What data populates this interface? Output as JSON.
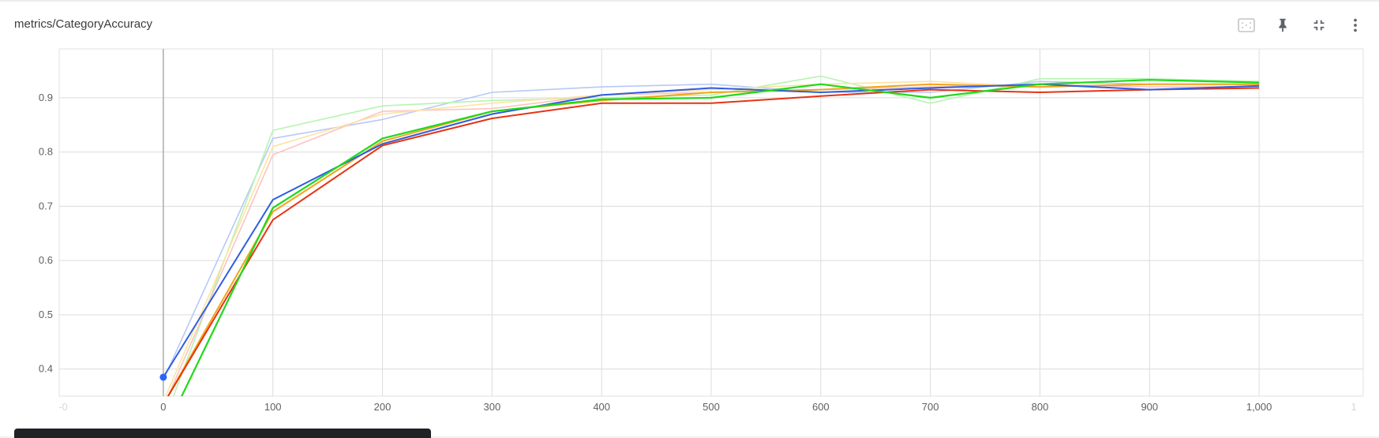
{
  "card": {
    "title": "metrics/CategoryAccuracy"
  },
  "toolbar": {
    "buttons": [
      {
        "name": "fit-domain-button",
        "icon": "fit-to-data-icon"
      },
      {
        "name": "pin-button",
        "icon": "pin-icon"
      },
      {
        "name": "collapse-button",
        "icon": "fullscreen-exit-icon"
      },
      {
        "name": "more-options-button",
        "icon": "more-vert-icon"
      }
    ]
  },
  "chart_data": {
    "type": "line",
    "title": "metrics/CategoryAccuracy",
    "xlabel": "",
    "ylabel": "",
    "xlim": [
      -95,
      1095
    ],
    "ylim": [
      0.35,
      0.99
    ],
    "x_ticks": [
      0,
      100,
      200,
      300,
      400,
      500,
      600,
      700,
      800,
      900,
      1000
    ],
    "x_tick_labels": [
      "0",
      "100",
      "200",
      "300",
      "400",
      "500",
      "600",
      "700",
      "800",
      "900",
      "1,000"
    ],
    "x_tick_labels_faded": [
      "-0",
      "1"
    ],
    "y_ticks": [
      0.4,
      0.5,
      0.6,
      0.7,
      0.8,
      0.9
    ],
    "y_tick_labels": [
      "0.4",
      "0.5",
      "0.6",
      "0.7",
      "0.8",
      "0.9"
    ],
    "grid": true,
    "highlight_point": {
      "x": 0,
      "y": 0.385,
      "color": "#2962ff"
    },
    "series": [
      {
        "color": "#b7c9f8",
        "width": 1.6,
        "points": [
          [
            0,
            0.38
          ],
          [
            100,
            0.825
          ],
          [
            200,
            0.86
          ],
          [
            300,
            0.91
          ],
          [
            400,
            0.92
          ],
          [
            500,
            0.925
          ],
          [
            600,
            0.91
          ],
          [
            700,
            0.91
          ],
          [
            800,
            0.93
          ],
          [
            900,
            0.925
          ],
          [
            1000,
            0.925
          ]
        ]
      },
      {
        "color": "#b6f4b2",
        "width": 1.6,
        "points": [
          [
            0,
            0.3
          ],
          [
            100,
            0.84
          ],
          [
            200,
            0.885
          ],
          [
            300,
            0.895
          ],
          [
            400,
            0.9
          ],
          [
            500,
            0.905
          ],
          [
            600,
            0.94
          ],
          [
            700,
            0.89
          ],
          [
            800,
            0.935
          ],
          [
            900,
            0.935
          ],
          [
            1000,
            0.93
          ]
        ]
      },
      {
        "color": "#fbc4c0",
        "width": 1.6,
        "points": [
          [
            0,
            0.33
          ],
          [
            100,
            0.795
          ],
          [
            200,
            0.875
          ],
          [
            300,
            0.88
          ],
          [
            400,
            0.905
          ],
          [
            500,
            0.91
          ],
          [
            600,
            0.915
          ],
          [
            700,
            0.92
          ],
          [
            800,
            0.925
          ],
          [
            900,
            0.92
          ],
          [
            1000,
            0.92
          ]
        ]
      },
      {
        "color": "#fde3a3",
        "width": 1.6,
        "points": [
          [
            0,
            0.34
          ],
          [
            100,
            0.81
          ],
          [
            200,
            0.87
          ],
          [
            300,
            0.89
          ],
          [
            400,
            0.905
          ],
          [
            500,
            0.915
          ],
          [
            600,
            0.925
          ],
          [
            700,
            0.93
          ],
          [
            800,
            0.92
          ],
          [
            900,
            0.925
          ],
          [
            1000,
            0.925
          ]
        ]
      },
      {
        "color": "#f2a41c",
        "width": 2.0,
        "points": [
          [
            0,
            0.335
          ],
          [
            100,
            0.69
          ],
          [
            200,
            0.82
          ],
          [
            300,
            0.875
          ],
          [
            400,
            0.895
          ],
          [
            500,
            0.91
          ],
          [
            600,
            0.915
          ],
          [
            700,
            0.925
          ],
          [
            800,
            0.92
          ],
          [
            900,
            0.925
          ],
          [
            1000,
            0.925
          ]
        ]
      },
      {
        "color": "#e53414",
        "width": 2.0,
        "points": [
          [
            0,
            0.335
          ],
          [
            100,
            0.675
          ],
          [
            200,
            0.812
          ],
          [
            300,
            0.862
          ],
          [
            400,
            0.89
          ],
          [
            500,
            0.89
          ],
          [
            600,
            0.903
          ],
          [
            700,
            0.915
          ],
          [
            800,
            0.91
          ],
          [
            900,
            0.915
          ],
          [
            1000,
            0.918
          ]
        ]
      },
      {
        "color": "#2f5de0",
        "width": 2.0,
        "points": [
          [
            0,
            0.385
          ],
          [
            100,
            0.712
          ],
          [
            200,
            0.815
          ],
          [
            300,
            0.87
          ],
          [
            400,
            0.905
          ],
          [
            500,
            0.918
          ],
          [
            600,
            0.91
          ],
          [
            700,
            0.918
          ],
          [
            800,
            0.925
          ],
          [
            900,
            0.915
          ],
          [
            1000,
            0.922
          ]
        ]
      },
      {
        "color": "#1fd91a",
        "width": 2.2,
        "points": [
          [
            0,
            0.28
          ],
          [
            100,
            0.697
          ],
          [
            200,
            0.825
          ],
          [
            300,
            0.875
          ],
          [
            400,
            0.897
          ],
          [
            500,
            0.9
          ],
          [
            600,
            0.925
          ],
          [
            700,
            0.9
          ],
          [
            800,
            0.925
          ],
          [
            900,
            0.933
          ],
          [
            1000,
            0.928
          ]
        ]
      }
    ]
  }
}
